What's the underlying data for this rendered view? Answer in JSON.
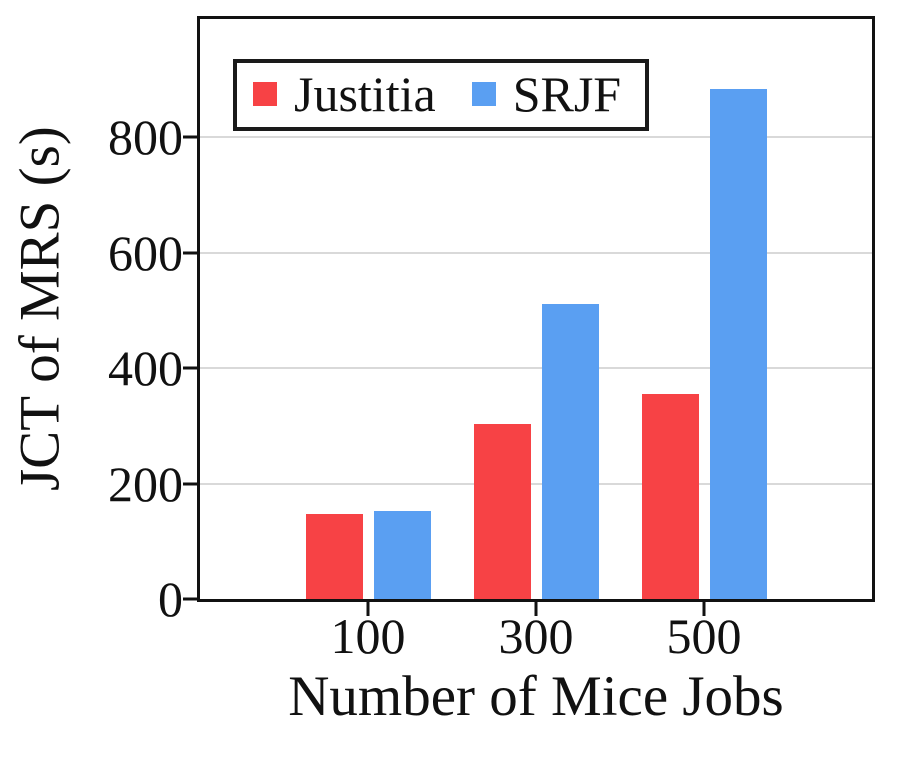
{
  "figure": {
    "background": "#ffffff",
    "axis_color": "#111111",
    "gridline_color": "#d9d9d9"
  },
  "chart_data": {
    "type": "bar",
    "title": "",
    "xlabel": "Number of Mice Jobs",
    "ylabel": "JCT of MRS (s)",
    "categories": [
      "100",
      "300",
      "500"
    ],
    "series": [
      {
        "name": "Justitia",
        "color": "#f74245",
        "values": [
          148,
          303,
          355
        ]
      },
      {
        "name": "SRJF",
        "color": "#5a9ff2",
        "values": [
          152,
          511,
          884
        ]
      }
    ],
    "yticks": [
      0,
      200,
      400,
      600,
      800
    ],
    "ylim": [
      0,
      1005
    ],
    "grid": {
      "horizontal": true,
      "vertical": false
    },
    "legend": {
      "position": "top-left-inside",
      "entries": [
        "Justitia",
        "SRJF"
      ]
    }
  }
}
